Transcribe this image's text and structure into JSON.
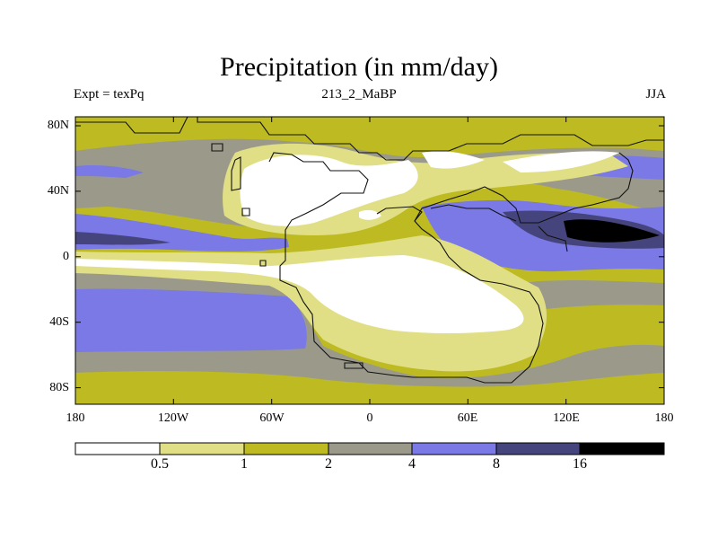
{
  "title": "Precipitation (in mm/day)",
  "left_label": "Expt = texPq",
  "center_label": "213_2_MaBP",
  "right_label": "JJA",
  "colors": {
    "c0": "#ffffff",
    "c1": "#e1df85",
    "c2": "#bdbb21",
    "c3": "#9b9a8a",
    "c4": "#7a79e6",
    "c5": "#45447c",
    "c6": "#000000",
    "coast": "#111111"
  },
  "axes": {
    "x_ticks": [
      "180",
      "120W",
      "60W",
      "0",
      "60E",
      "120E",
      "180"
    ],
    "y_ticks": [
      "80N",
      "40N",
      "0",
      "40S",
      "80S"
    ]
  },
  "colorbar": {
    "levels": [
      "0.5",
      "1",
      "2",
      "4",
      "8",
      "16"
    ],
    "unit": "mm/day"
  }
}
